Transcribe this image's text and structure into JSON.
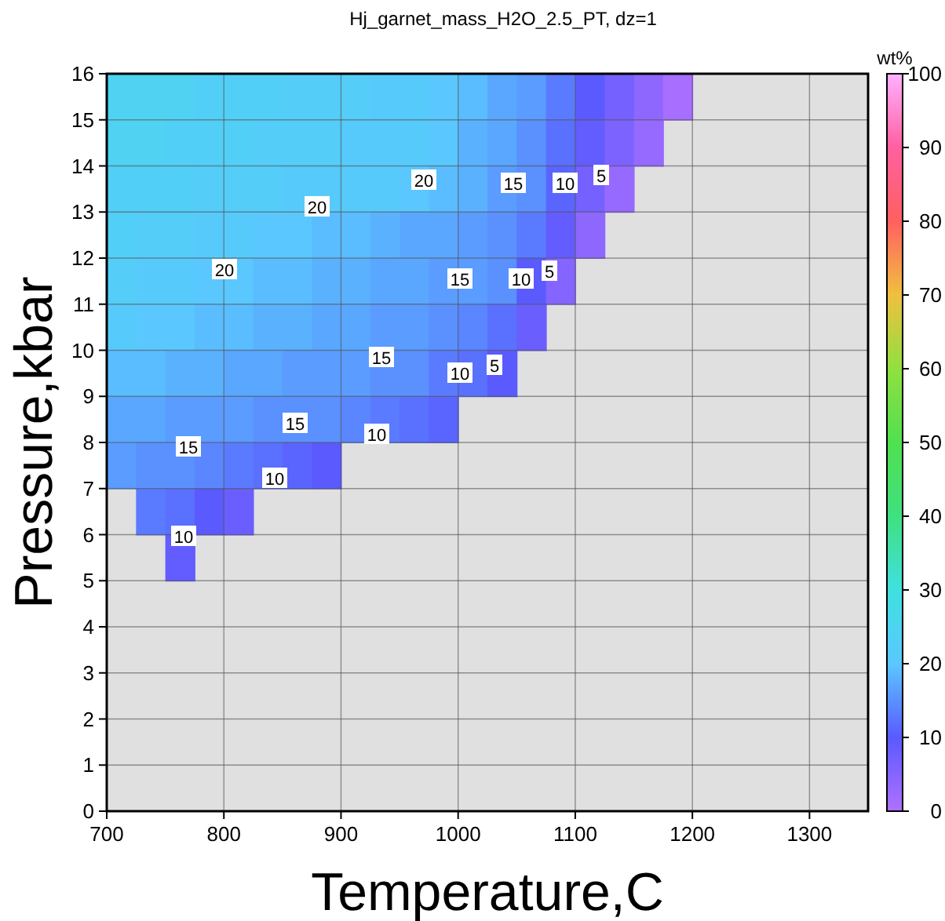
{
  "chart_data": {
    "type": "heatmap",
    "title": "Hj_garnet_mass_H2O_2.5_PT, dz=1",
    "xlabel": "Temperature,C",
    "ylabel": "Pressure,kbar",
    "clabel": "wt%",
    "x": [
      712.5,
      737.5,
      762.5,
      787.5,
      812.5,
      837.5,
      862.5,
      887.5,
      912.5,
      937.5,
      962.5,
      987.5,
      1012.5,
      1037.5,
      1062.5,
      1087.5,
      1112.5,
      1137.5,
      1162.5,
      1187.5
    ],
    "y": [
      15.5,
      14.5,
      13.5,
      12.5,
      11.5,
      10.5,
      9.5,
      8.5,
      7.5,
      6.5,
      5.5
    ],
    "cells": [
      [
        24,
        24,
        24,
        23,
        23,
        23,
        22,
        22,
        22,
        21,
        21,
        20,
        19,
        17,
        16,
        13,
        10,
        7,
        4,
        1
      ],
      [
        24,
        24,
        23,
        23,
        23,
        22,
        22,
        22,
        21,
        21,
        21,
        20,
        18,
        17,
        15,
        12,
        9,
        6,
        3,
        null
      ],
      [
        23,
        23,
        23,
        22,
        22,
        22,
        21,
        21,
        21,
        21,
        20,
        19,
        18,
        16,
        15,
        11,
        7,
        3,
        null,
        null
      ],
      [
        23,
        22,
        22,
        21,
        21,
        20,
        20,
        19,
        19,
        18,
        17,
        17,
        16,
        15,
        13,
        9,
        4,
        null,
        null,
        null
      ],
      [
        22,
        21,
        21,
        20,
        20,
        19,
        19,
        18,
        18,
        17,
        17,
        16,
        16,
        15,
        10,
        5,
        null,
        null,
        null,
        null
      ],
      [
        21,
        20,
        20,
        19,
        19,
        18,
        18,
        17,
        17,
        16,
        16,
        15,
        14,
        12,
        8,
        null,
        null,
        null,
        null,
        null
      ],
      [
        19,
        19,
        18,
        18,
        17,
        17,
        16,
        16,
        16,
        15,
        15,
        13,
        12,
        10,
        null,
        null,
        null,
        null,
        null,
        null
      ],
      [
        17,
        17,
        16,
        16,
        16,
        15,
        15,
        15,
        14,
        13,
        12,
        11,
        null,
        null,
        null,
        null,
        null,
        null,
        null,
        null
      ],
      [
        16,
        15,
        15,
        14,
        13,
        12,
        11,
        10,
        null,
        null,
        null,
        null,
        null,
        null,
        null,
        null,
        null,
        null,
        null,
        null
      ],
      [
        null,
        13,
        12,
        10,
        8,
        null,
        null,
        null,
        null,
        null,
        null,
        null,
        null,
        null,
        null,
        null,
        null,
        null,
        null,
        null
      ],
      [
        null,
        null,
        9,
        null,
        null,
        null,
        null,
        null,
        null,
        null,
        null,
        null,
        null,
        null,
        null,
        null,
        null,
        null,
        null,
        null
      ]
    ],
    "xlim": [
      700,
      1350
    ],
    "xticks": [
      700,
      800,
      900,
      1000,
      1100,
      1200,
      1300
    ],
    "ylim": [
      0,
      16
    ],
    "yticks": [
      0,
      1,
      2,
      3,
      4,
      5,
      6,
      7,
      8,
      9,
      10,
      11,
      12,
      13,
      14,
      15,
      16
    ],
    "clim": [
      0,
      100
    ],
    "cticks": [
      0,
      10,
      20,
      30,
      40,
      50,
      60,
      70,
      80,
      90,
      100
    ],
    "grid": true,
    "annotations": [
      "20",
      "20",
      "20",
      "15",
      "15",
      "15",
      "15",
      "15",
      "10",
      "10",
      "10",
      "10",
      "10",
      "10",
      "5",
      "5",
      "5"
    ]
  }
}
